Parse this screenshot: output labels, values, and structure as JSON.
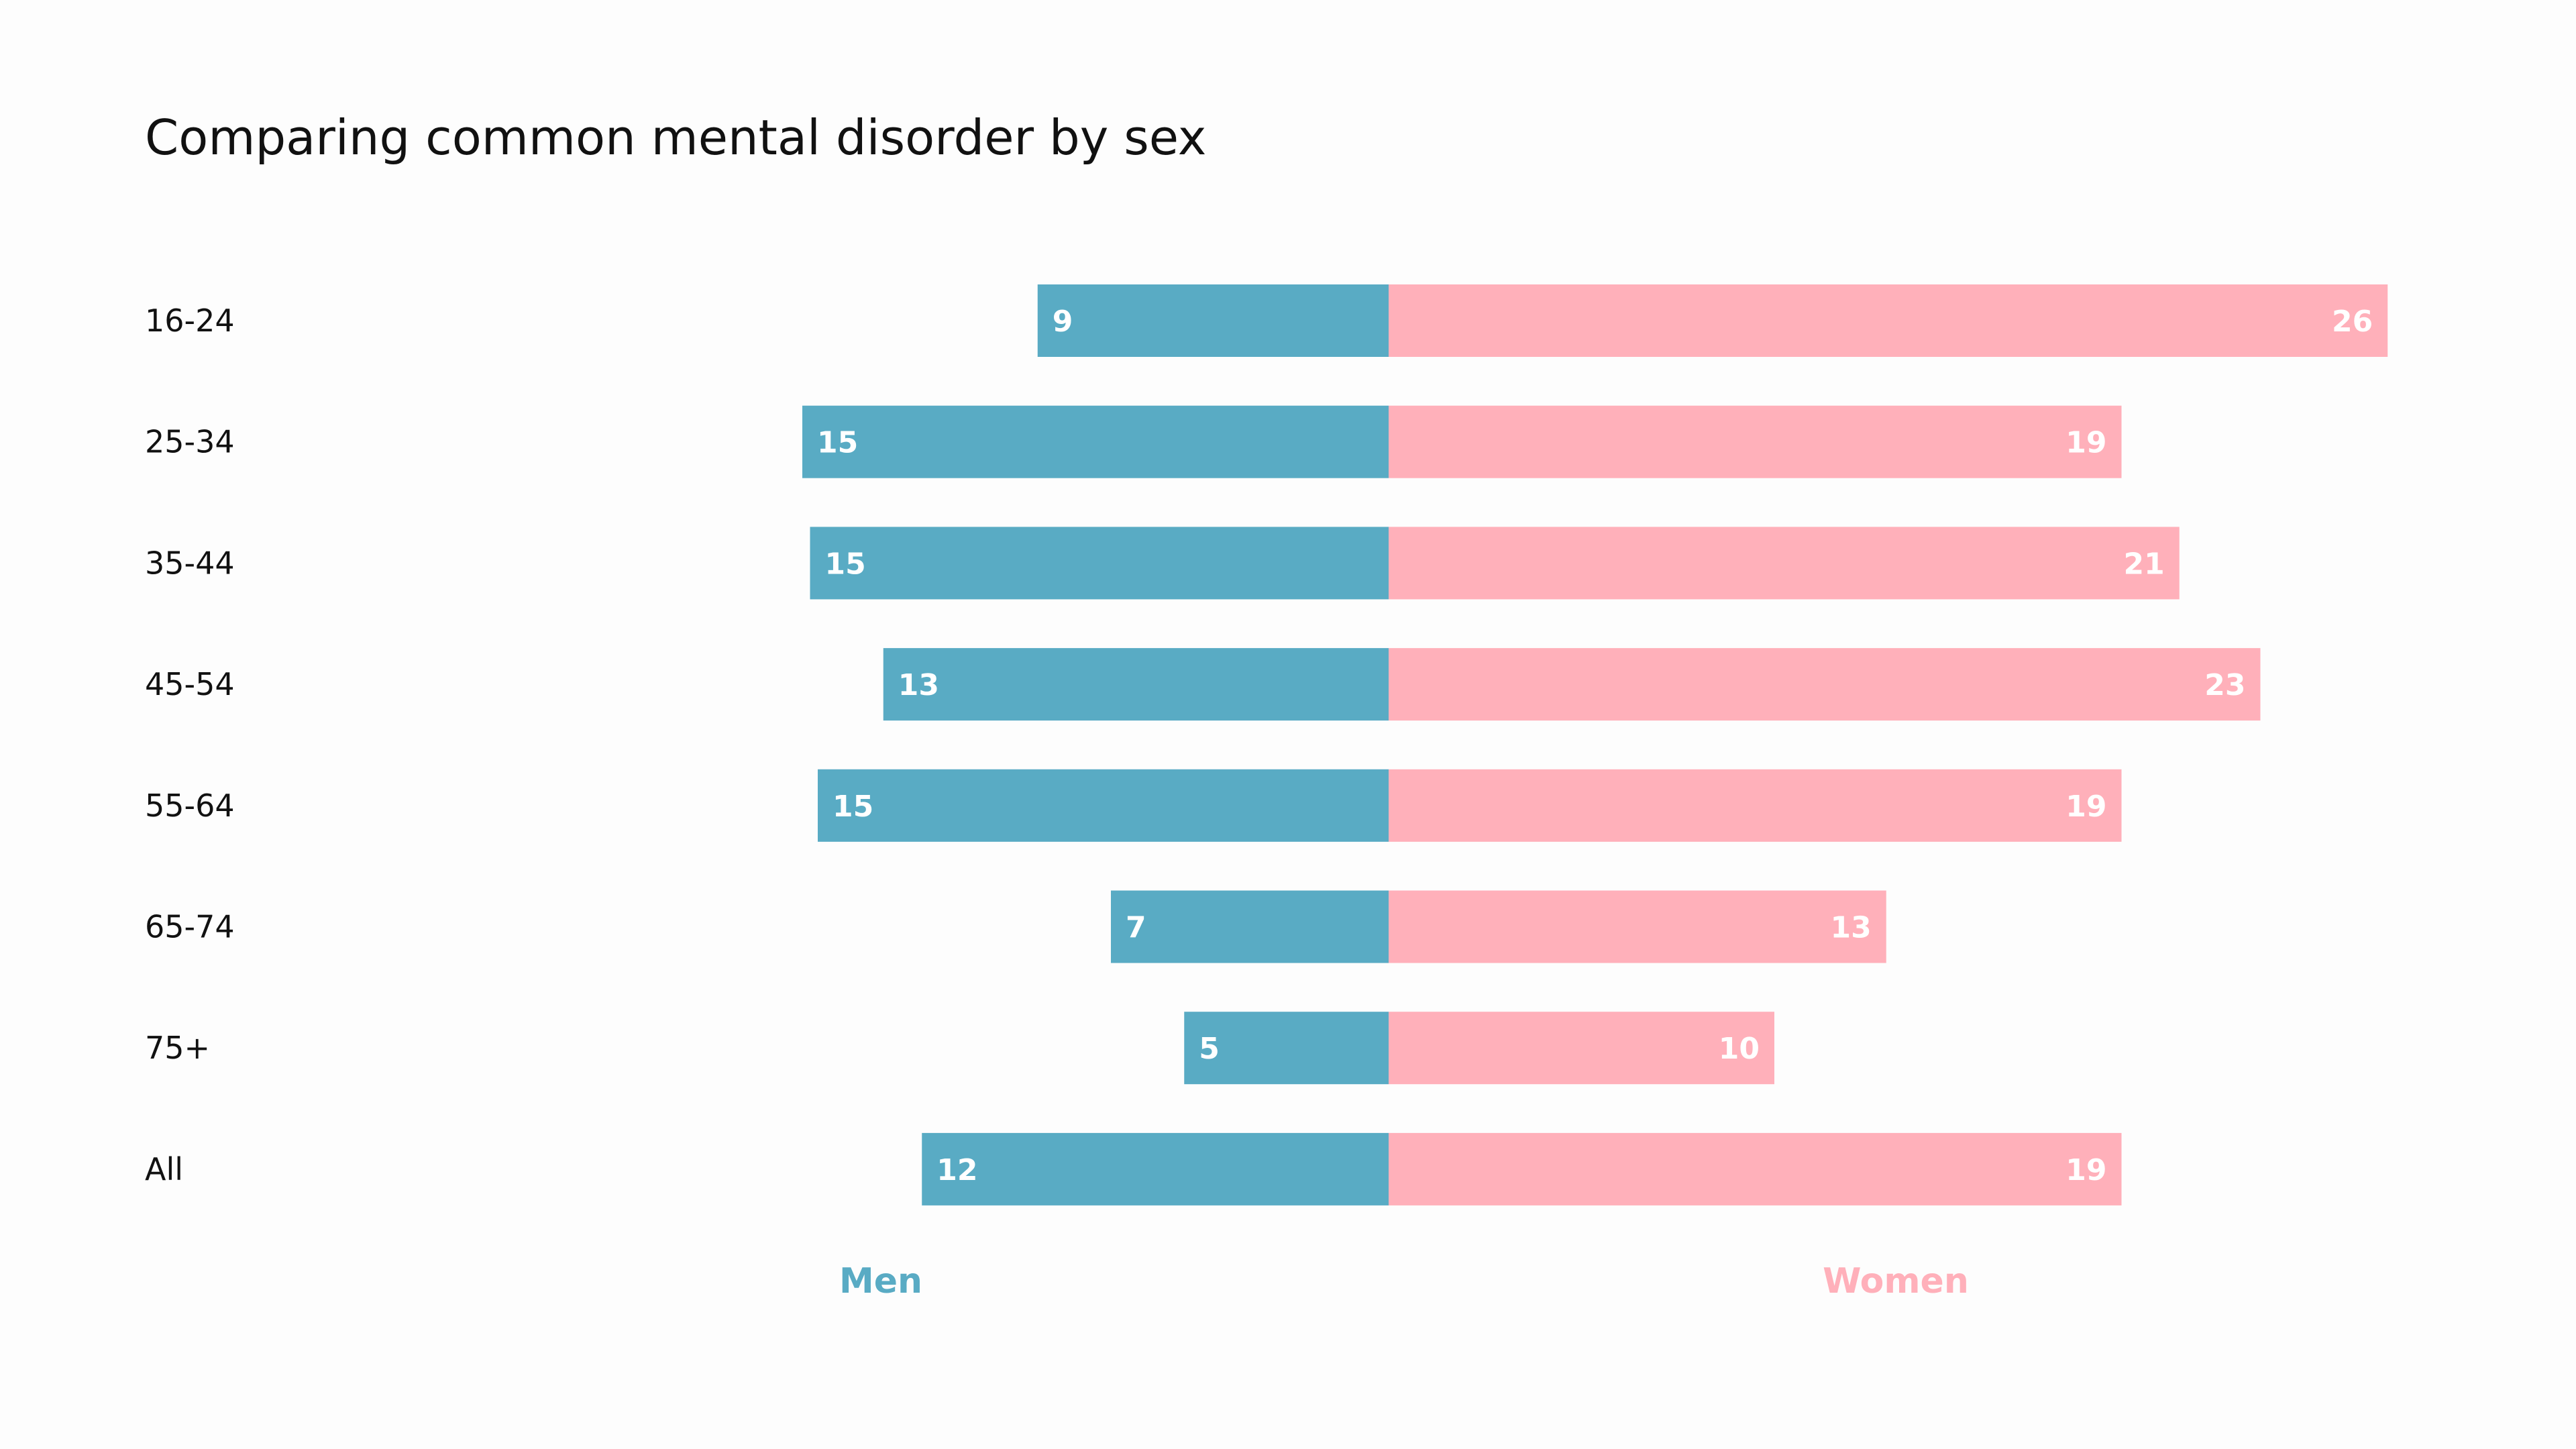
{
  "chart_data": {
    "type": "bar",
    "orientation": "horizontal-diverging",
    "title": "Comparing common mental disorder by sex",
    "categories": [
      "16-24",
      "25-34",
      "35-44",
      "45-54",
      "55-64",
      "65-74",
      "75+",
      "All"
    ],
    "series": [
      {
        "name": "Men",
        "color": "#59abc4",
        "values": [
          9.1,
          15.2,
          15.0,
          13.1,
          14.8,
          7.2,
          5.3,
          12.1
        ],
        "labels": [
          "9",
          "15",
          "15",
          "13",
          "15",
          "7",
          "5",
          "12"
        ]
      },
      {
        "name": "Women",
        "color": "#ffb0ba",
        "values": [
          25.9,
          19.0,
          20.5,
          22.6,
          19.0,
          12.9,
          10.0,
          19.0
        ],
        "labels": [
          "26",
          "19",
          "21",
          "23",
          "19",
          "13",
          "10",
          "19"
        ]
      }
    ],
    "grid": false,
    "legend": "bottom"
  }
}
